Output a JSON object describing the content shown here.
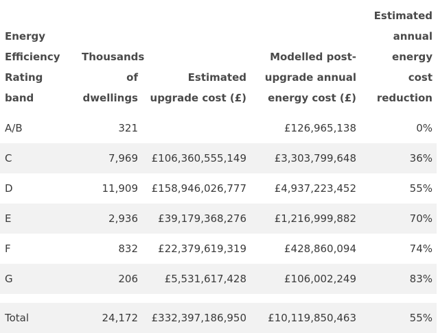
{
  "table": {
    "headers": [
      "Energy Efficiency Rating band",
      "Thousands of dwellings",
      "Estimated upgrade cost (£)",
      "Modelled post-upgrade annual energy cost (£)",
      "Estimated annual energy cost reduction"
    ],
    "rows": [
      [
        "A/B",
        "321",
        "",
        "£126,965,138",
        "0%"
      ],
      [
        "C",
        "7,969",
        "£106,360,555,149",
        "£3,303,799,648",
        "36%"
      ],
      [
        "D",
        "11,909",
        "£158,946,026,777",
        "£4,937,223,452",
        "55%"
      ],
      [
        "E",
        "2,936",
        "£39,179,368,276",
        "£1,216,999,882",
        "70%"
      ],
      [
        "F",
        "832",
        "£22,379,619,319",
        "£428,860,094",
        "74%"
      ],
      [
        "G",
        "206",
        "£5,531,617,428",
        "£106,002,249",
        "83%"
      ]
    ],
    "total": [
      "Total",
      "24,172",
      "£332,397,186,950",
      "£10,119,850,463",
      "55%"
    ]
  }
}
